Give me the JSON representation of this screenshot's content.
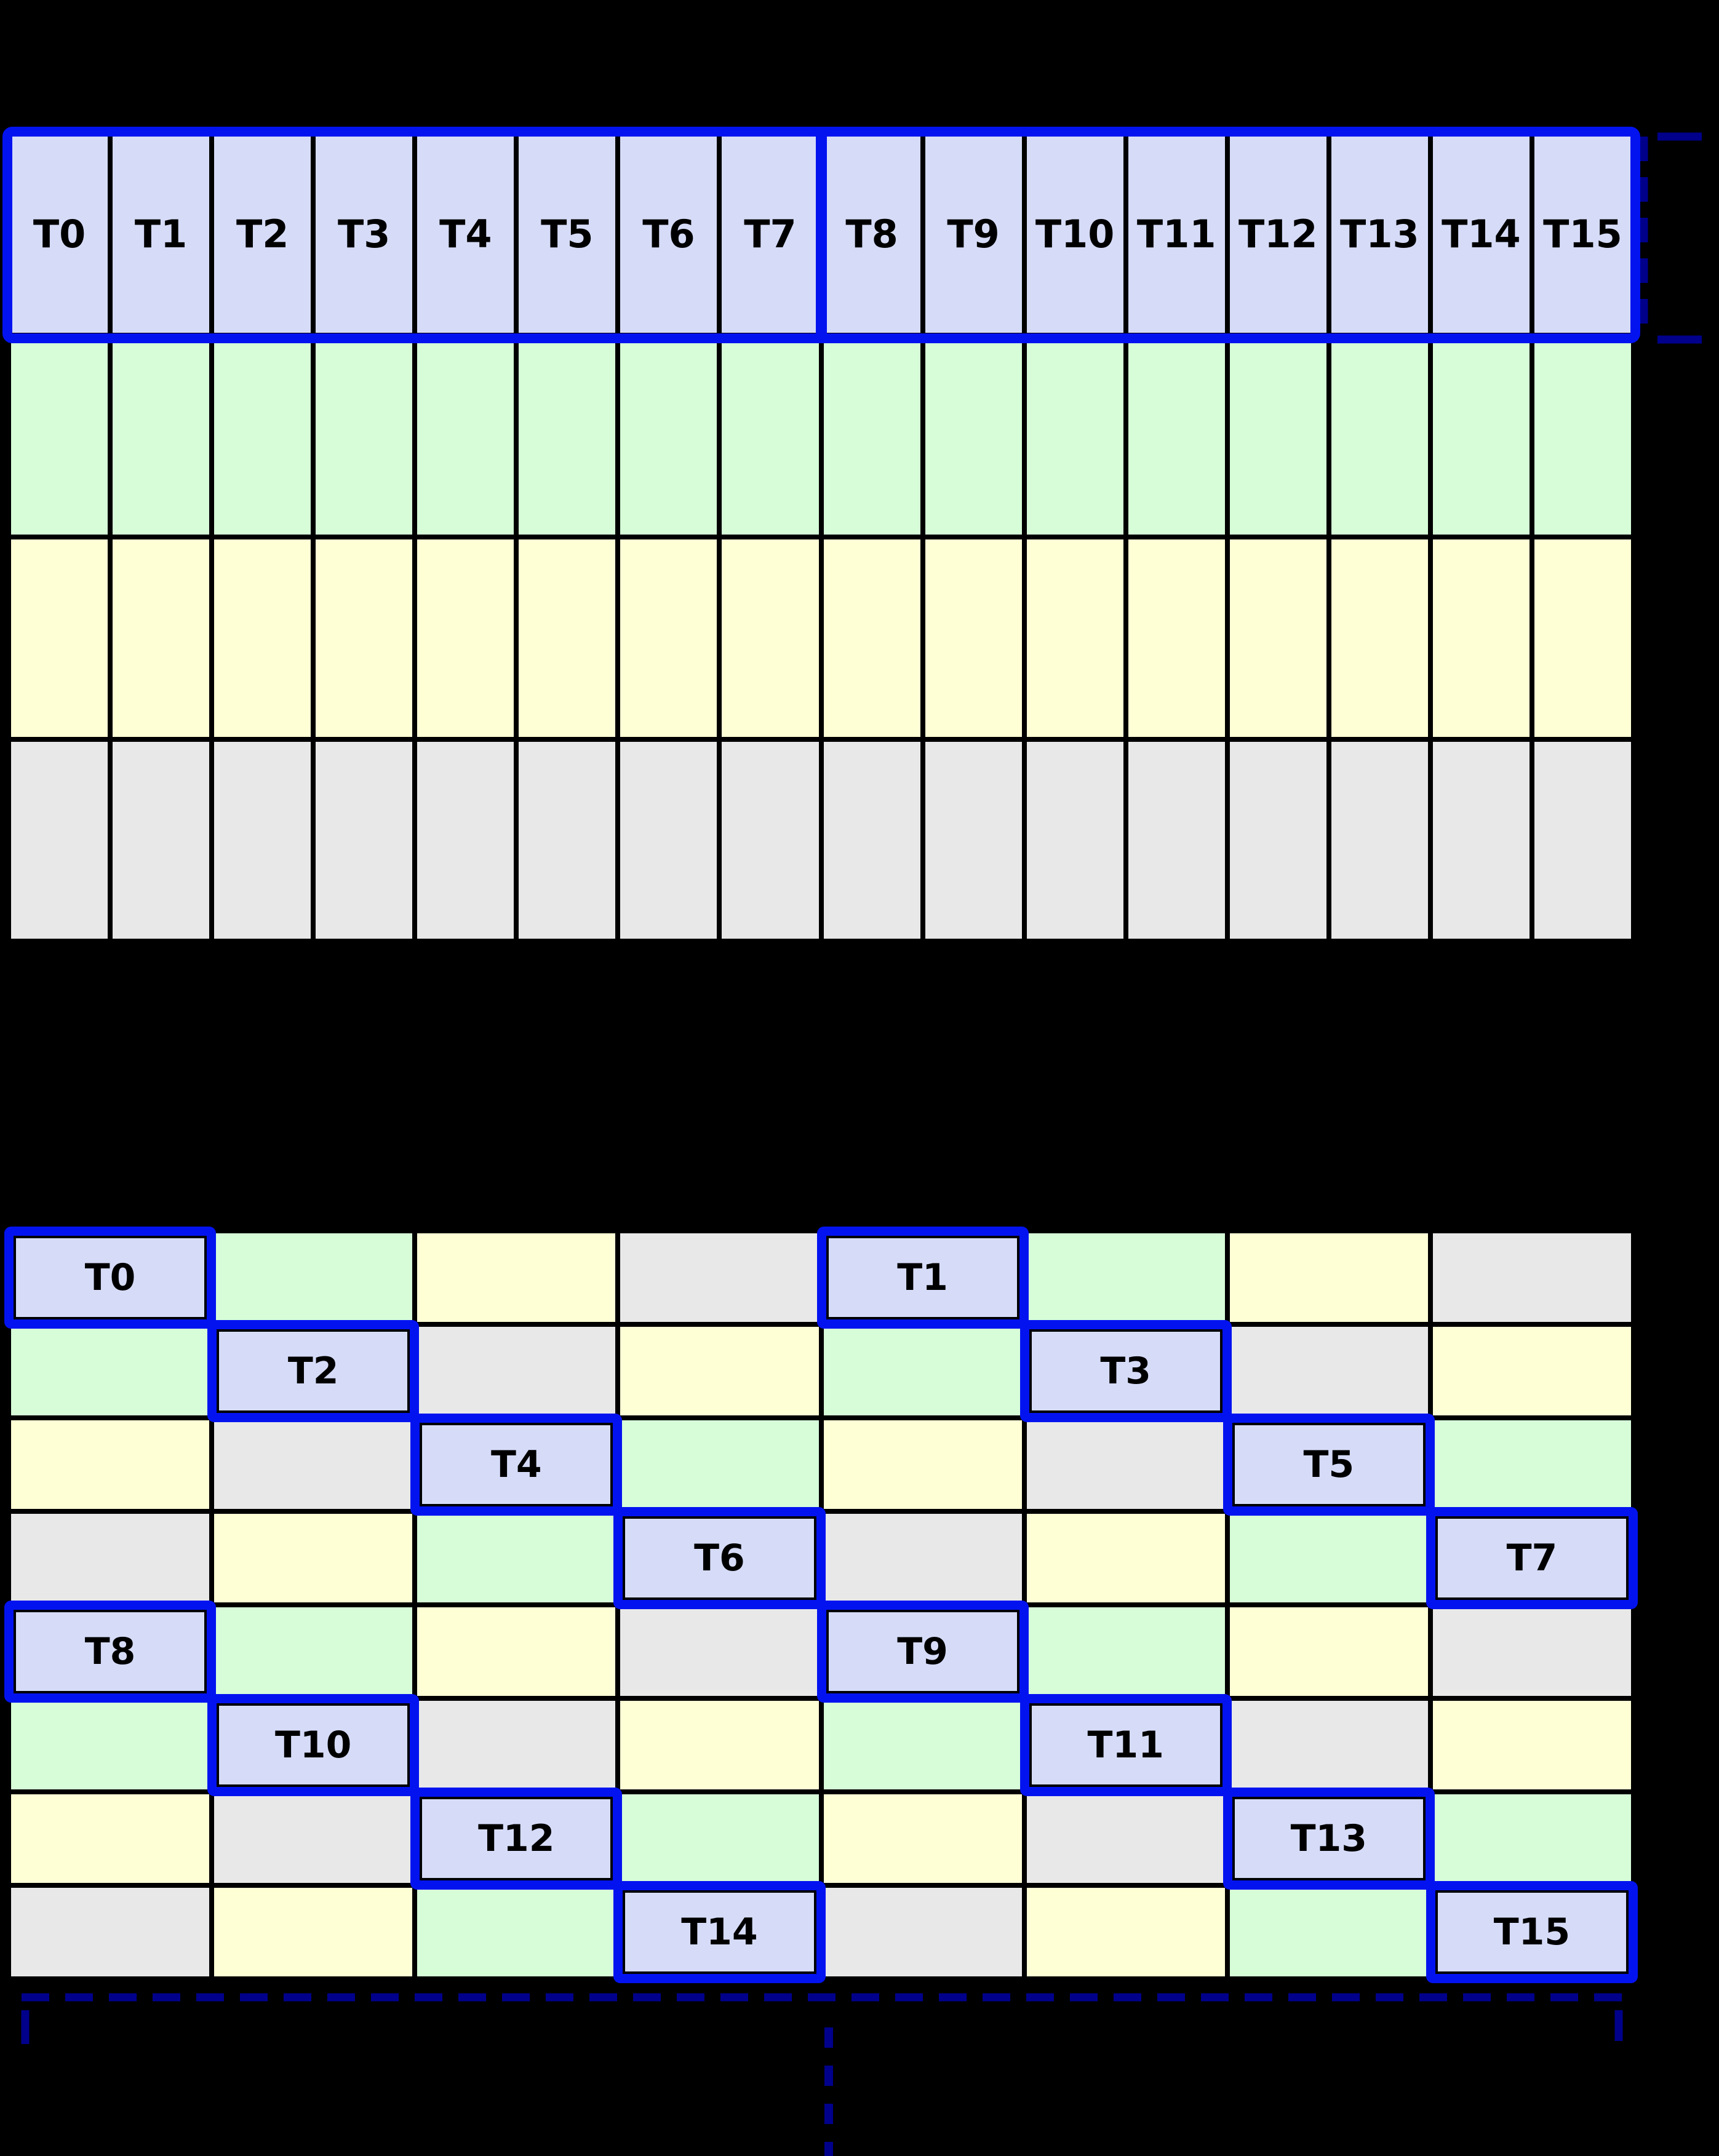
{
  "colors": {
    "background": "#000000",
    "thread": "#d6dcf8",
    "green": "#d6fdd8",
    "yellow": "#ffffd6",
    "gray": "#e8e8e8",
    "blue": "#0313f0",
    "navy": "#00008b",
    "line": "#000000",
    "text": "#000000"
  },
  "top_grid": {
    "columns": 16,
    "rows": 4,
    "row_colors": [
      "thread",
      "green",
      "yellow",
      "gray"
    ],
    "threads": [
      "T0",
      "T1",
      "T2",
      "T3",
      "T4",
      "T5",
      "T6",
      "T7",
      "T8",
      "T9",
      "T10",
      "T11",
      "T12",
      "T13",
      "T14",
      "T15"
    ],
    "warp_divider_after_column": 8
  },
  "bottom_grid": {
    "rows": 8,
    "columns": 8,
    "color_cycle": [
      "thread",
      "green",
      "yellow",
      "gray"
    ],
    "pattern": "color index = (row mod 4) xor (col mod 4)",
    "threads": [
      {
        "row": 0,
        "col": 0,
        "label": "T0"
      },
      {
        "row": 0,
        "col": 4,
        "label": "T1"
      },
      {
        "row": 1,
        "col": 1,
        "label": "T2"
      },
      {
        "row": 1,
        "col": 5,
        "label": "T3"
      },
      {
        "row": 2,
        "col": 2,
        "label": "T4"
      },
      {
        "row": 2,
        "col": 6,
        "label": "T5"
      },
      {
        "row": 3,
        "col": 3,
        "label": "T6"
      },
      {
        "row": 3,
        "col": 7,
        "label": "T7"
      },
      {
        "row": 4,
        "col": 0,
        "label": "T8"
      },
      {
        "row": 4,
        "col": 4,
        "label": "T9"
      },
      {
        "row": 5,
        "col": 1,
        "label": "T10"
      },
      {
        "row": 5,
        "col": 5,
        "label": "T11"
      },
      {
        "row": 6,
        "col": 2,
        "label": "T12"
      },
      {
        "row": 6,
        "col": 6,
        "label": "T13"
      },
      {
        "row": 7,
        "col": 3,
        "label": "T14"
      },
      {
        "row": 7,
        "col": 7,
        "label": "T15"
      }
    ]
  },
  "annotations": {
    "right_bracket_style": "dashed navy bracket spanning thread row of top grid",
    "bottom_bracket_style": "dashed navy span line under bottom grid with end ticks",
    "continuation_dots": 4
  }
}
